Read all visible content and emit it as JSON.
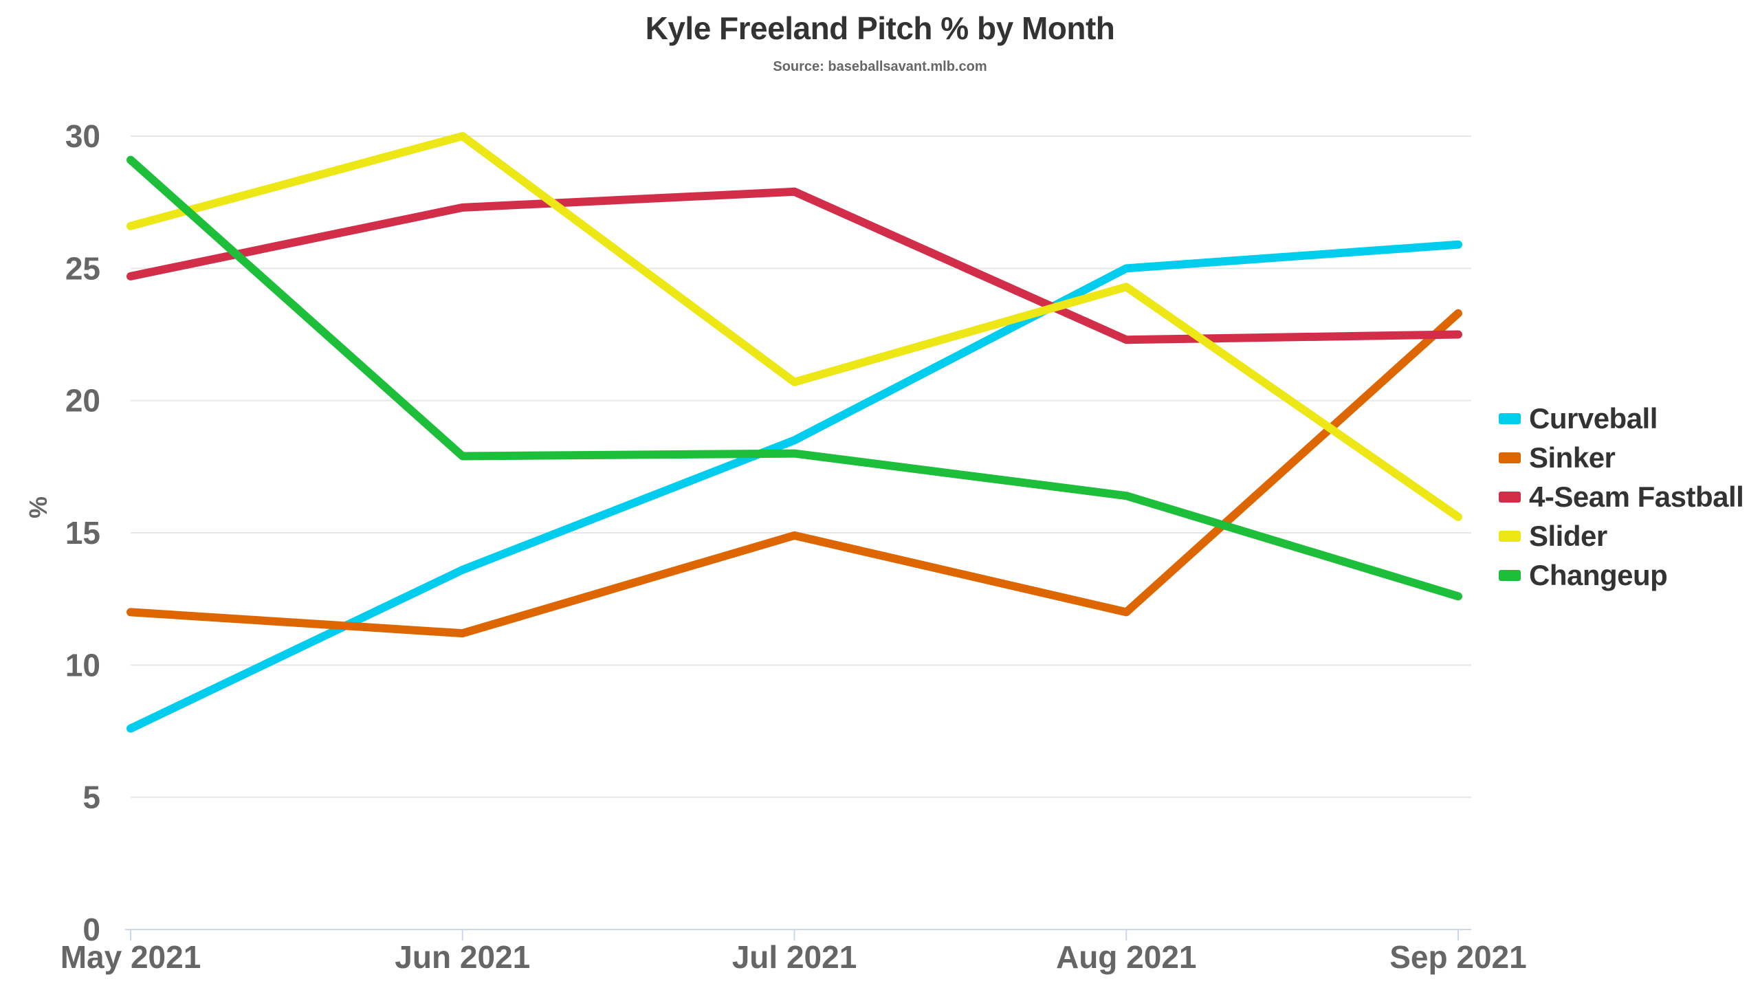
{
  "chart_data": {
    "type": "line",
    "title": "Kyle Freeland Pitch % by Month",
    "subtitle": "Source: baseballsavant.mlb.com",
    "xlabel": "",
    "ylabel": "%",
    "categories": [
      "May 2021",
      "Jun 2021",
      "Jul 2021",
      "Aug 2021",
      "Sep 2021"
    ],
    "ylim": [
      0,
      30
    ],
    "yticks": [
      "0",
      "5",
      "10",
      "15",
      "20",
      "25",
      "30"
    ],
    "grid": true,
    "legend_position": "right",
    "series": [
      {
        "name": "Curveball",
        "color": "#00CCEE",
        "values": [
          7.6,
          13.6,
          18.5,
          25.0,
          25.9
        ]
      },
      {
        "name": "Sinker",
        "color": "#DD6600",
        "values": [
          12.0,
          11.2,
          14.9,
          12.0,
          23.3
        ]
      },
      {
        "name": "4-Seam Fastball",
        "color": "#D22D49",
        "values": [
          24.7,
          27.3,
          27.9,
          22.3,
          22.5
        ]
      },
      {
        "name": "Slider",
        "color": "#EEE716",
        "values": [
          26.6,
          30.0,
          20.7,
          24.3,
          15.6
        ]
      },
      {
        "name": "Changeup",
        "color": "#1DBE3A",
        "values": [
          29.1,
          17.9,
          18.0,
          16.4,
          12.6
        ]
      }
    ]
  }
}
